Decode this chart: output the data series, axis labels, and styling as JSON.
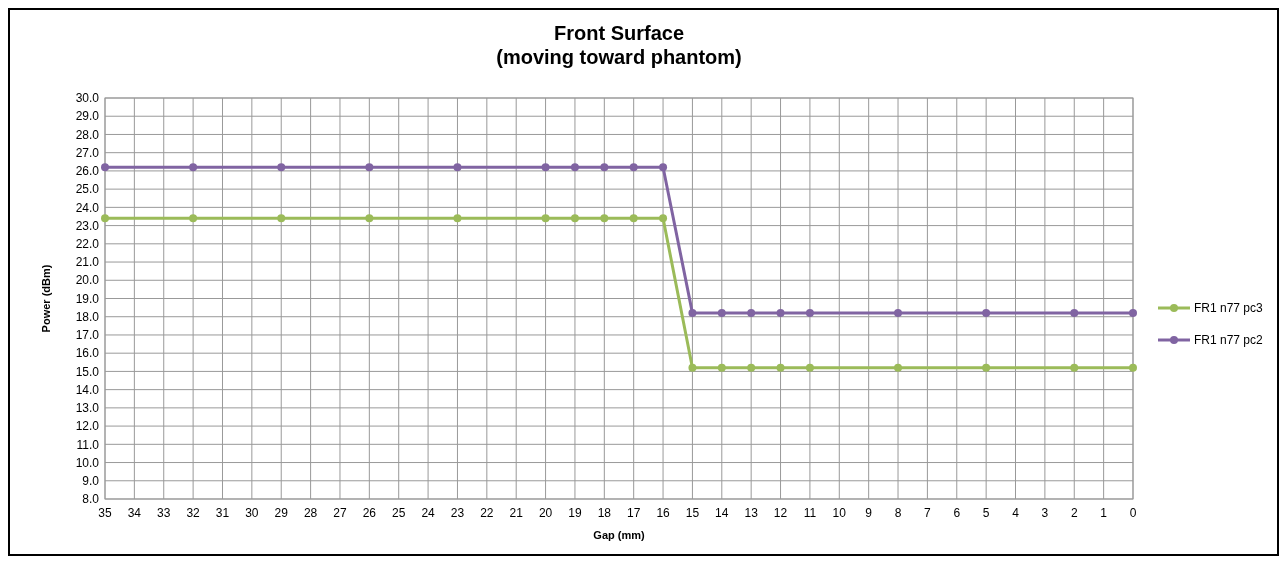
{
  "chart_data": {
    "type": "line",
    "title": "Front Surface\n(moving toward phantom)",
    "xlabel": "Gap (mm)",
    "ylabel": "Power (dBm)",
    "x": [
      35,
      32,
      29,
      26,
      23,
      20,
      19,
      18,
      17,
      16,
      15,
      14,
      13,
      12,
      11,
      8,
      5,
      2,
      0
    ],
    "series": [
      {
        "name": "FR1 n77 pc3",
        "color": "#9bbb59",
        "values": [
          23.4,
          23.4,
          23.4,
          23.4,
          23.4,
          23.4,
          23.4,
          23.4,
          23.4,
          23.4,
          15.2,
          15.2,
          15.2,
          15.2,
          15.2,
          15.2,
          15.2,
          15.2,
          15.2
        ]
      },
      {
        "name": "FR1 n77 pc2",
        "color": "#8064a2",
        "values": [
          26.2,
          26.2,
          26.2,
          26.2,
          26.2,
          26.2,
          26.2,
          26.2,
          26.2,
          26.2,
          18.2,
          18.2,
          18.2,
          18.2,
          18.2,
          18.2,
          18.2,
          18.2,
          18.2
        ]
      }
    ],
    "xlim": [
      35,
      0
    ],
    "xticks": [
      35,
      34,
      33,
      32,
      31,
      30,
      29,
      28,
      27,
      26,
      25,
      24,
      23,
      22,
      21,
      20,
      19,
      18,
      17,
      16,
      15,
      14,
      13,
      12,
      11,
      10,
      9,
      8,
      7,
      6,
      5,
      4,
      3,
      2,
      1,
      0
    ],
    "ylim": [
      8,
      30
    ],
    "yticks": [
      {
        "value": 8,
        "label": "8.0"
      },
      {
        "value": 9,
        "label": "9.0"
      },
      {
        "value": 10,
        "label": "10.0"
      },
      {
        "value": 11,
        "label": "11.0"
      },
      {
        "value": 12,
        "label": "12.0"
      },
      {
        "value": 13,
        "label": "13.0"
      },
      {
        "value": 14,
        "label": "14.0"
      },
      {
        "value": 15,
        "label": "15.0"
      },
      {
        "value": 16,
        "label": "16.0"
      },
      {
        "value": 17,
        "label": "17.0"
      },
      {
        "value": 18,
        "label": "18.0"
      },
      {
        "value": 19,
        "label": "19.0"
      },
      {
        "value": 20,
        "label": "20.0"
      },
      {
        "value": 21,
        "label": "21.0"
      },
      {
        "value": 22,
        "label": "22.0"
      },
      {
        "value": 23,
        "label": "23.0"
      },
      {
        "value": 24,
        "label": "24.0"
      },
      {
        "value": 25,
        "label": "25.0"
      },
      {
        "value": 26,
        "label": "26.0"
      },
      {
        "value": 27,
        "label": "27.0"
      },
      {
        "value": 28,
        "label": "28.0"
      },
      {
        "value": 29,
        "label": "29.0"
      },
      {
        "value": 30,
        "label": "30.0"
      }
    ],
    "grid": true,
    "legend": "right",
    "marker": "circle",
    "line_style": "solid"
  }
}
